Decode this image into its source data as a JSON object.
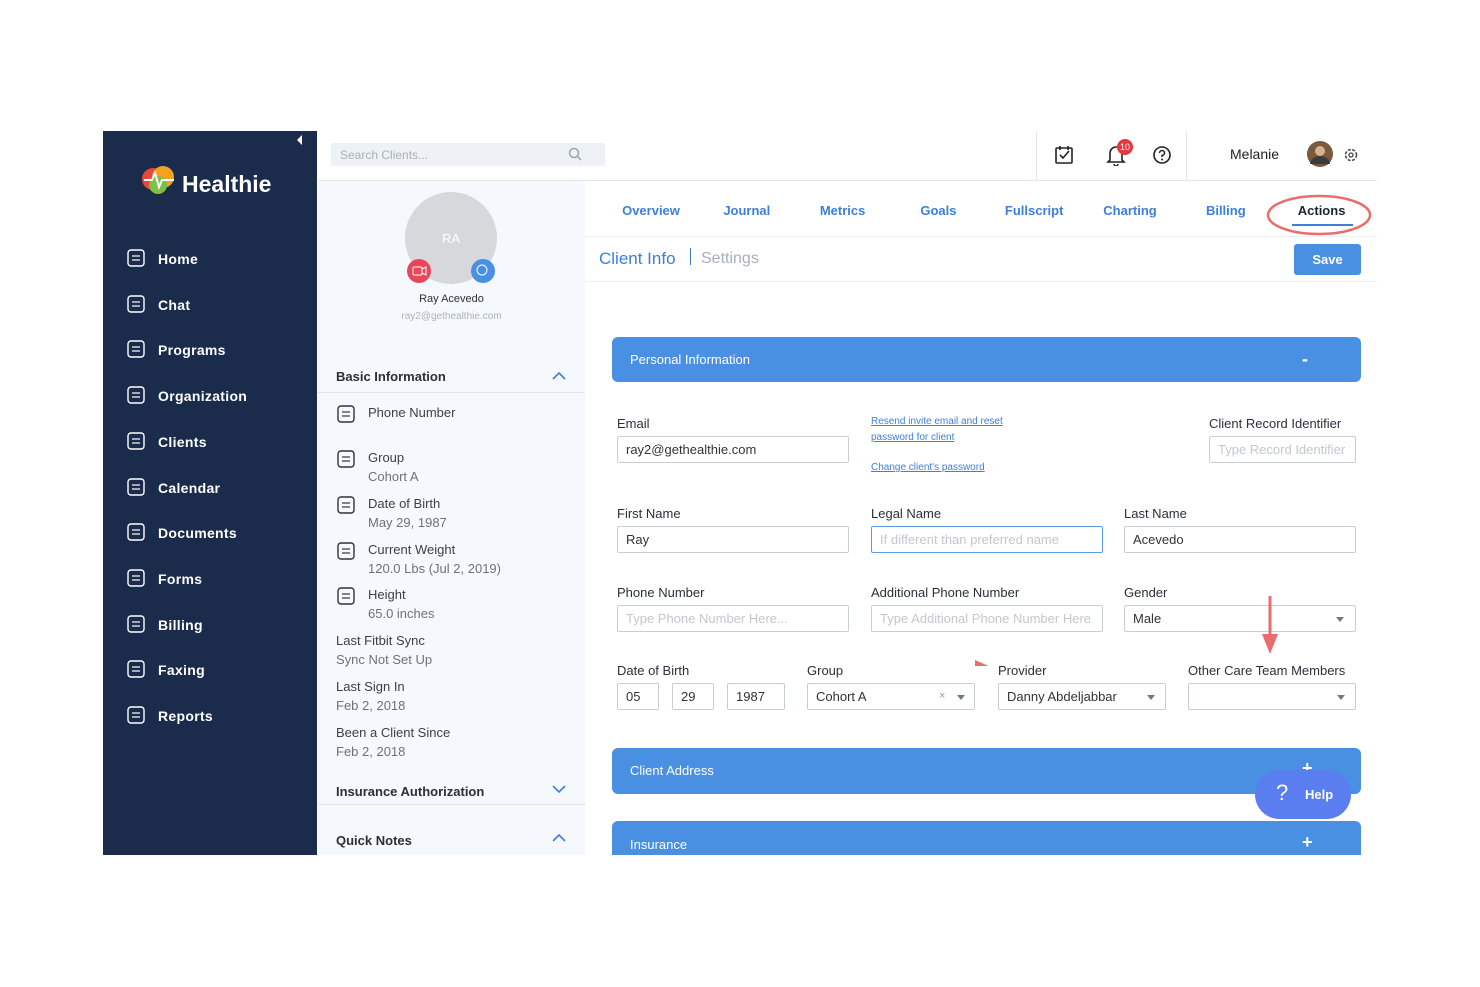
{
  "app": {
    "logo": "Healthie",
    "search_placeholder": "Search Clients...",
    "notification_count": "10",
    "user_name": "Melanie"
  },
  "nav": [
    "Home",
    "Chat",
    "Programs",
    "Organization",
    "Clients",
    "Calendar",
    "Documents",
    "Forms",
    "Billing",
    "Faxing",
    "Reports"
  ],
  "client": {
    "initials": "RA",
    "name": "Ray Acevedo",
    "email": "ray2@gethealthie.com"
  },
  "basic_information": {
    "title": "Basic Information",
    "items": [
      {
        "label": "Phone Number"
      },
      {
        "label": "Group",
        "value": "Cohort A"
      },
      {
        "label": "Date of Birth",
        "value": "May 29, 1987"
      },
      {
        "label": "Current Weight",
        "value": "120.0 Lbs (Jul 2, 2019)"
      },
      {
        "label": "Height",
        "value": "65.0 inches"
      },
      {
        "label": "Last Fitbit Sync",
        "value": "Sync Not Set Up"
      },
      {
        "label": "Last Sign In",
        "value": "Feb 2, 2018"
      },
      {
        "label": "Been a Client Since",
        "value": "Feb 2, 2018"
      }
    ]
  },
  "side_sections": [
    "Insurance Authorization",
    "Quick Notes"
  ],
  "tabs": [
    "Overview",
    "Journal",
    "Metrics",
    "Goals",
    "Fullscript",
    "Charting",
    "Billing",
    "Actions"
  ],
  "subnav": [
    "Client Info",
    "Settings"
  ],
  "save": "Save",
  "panels": [
    {
      "title": "Personal Information",
      "toggle": "-"
    },
    {
      "title": "Client Address",
      "toggle": "+"
    },
    {
      "title": "Insurance",
      "toggle": "+"
    }
  ],
  "links": [
    "Resend invite email and reset password for client",
    "Change client's password"
  ],
  "form": {
    "email": {
      "label": "Email",
      "value": "ray2@gethealthie.com"
    },
    "record_id": {
      "label": "Client Record Identifier",
      "placeholder": "Type Record Identifier"
    },
    "first_name": {
      "label": "First Name",
      "value": "Ray"
    },
    "legal_name": {
      "label": "Legal Name",
      "placeholder": "If different than preferred name"
    },
    "last_name": {
      "label": "Last Name",
      "value": "Acevedo"
    },
    "phone": {
      "label": "Phone Number",
      "placeholder": "Type Phone Number Here..."
    },
    "additional_phone": {
      "label": "Additional Phone Number",
      "placeholder": "Type Additional Phone Number Here"
    },
    "gender": {
      "label": "Gender",
      "value": "Male"
    },
    "dob": {
      "label": "Date of Birth",
      "month": "05",
      "day": "29",
      "year": "1987"
    },
    "group": {
      "label": "Group",
      "value": "Cohort A"
    },
    "provider": {
      "label": "Provider",
      "value": "Danny Abdeljabbar"
    },
    "care_team": {
      "label": "Other Care Team Members"
    }
  },
  "help": "Help"
}
